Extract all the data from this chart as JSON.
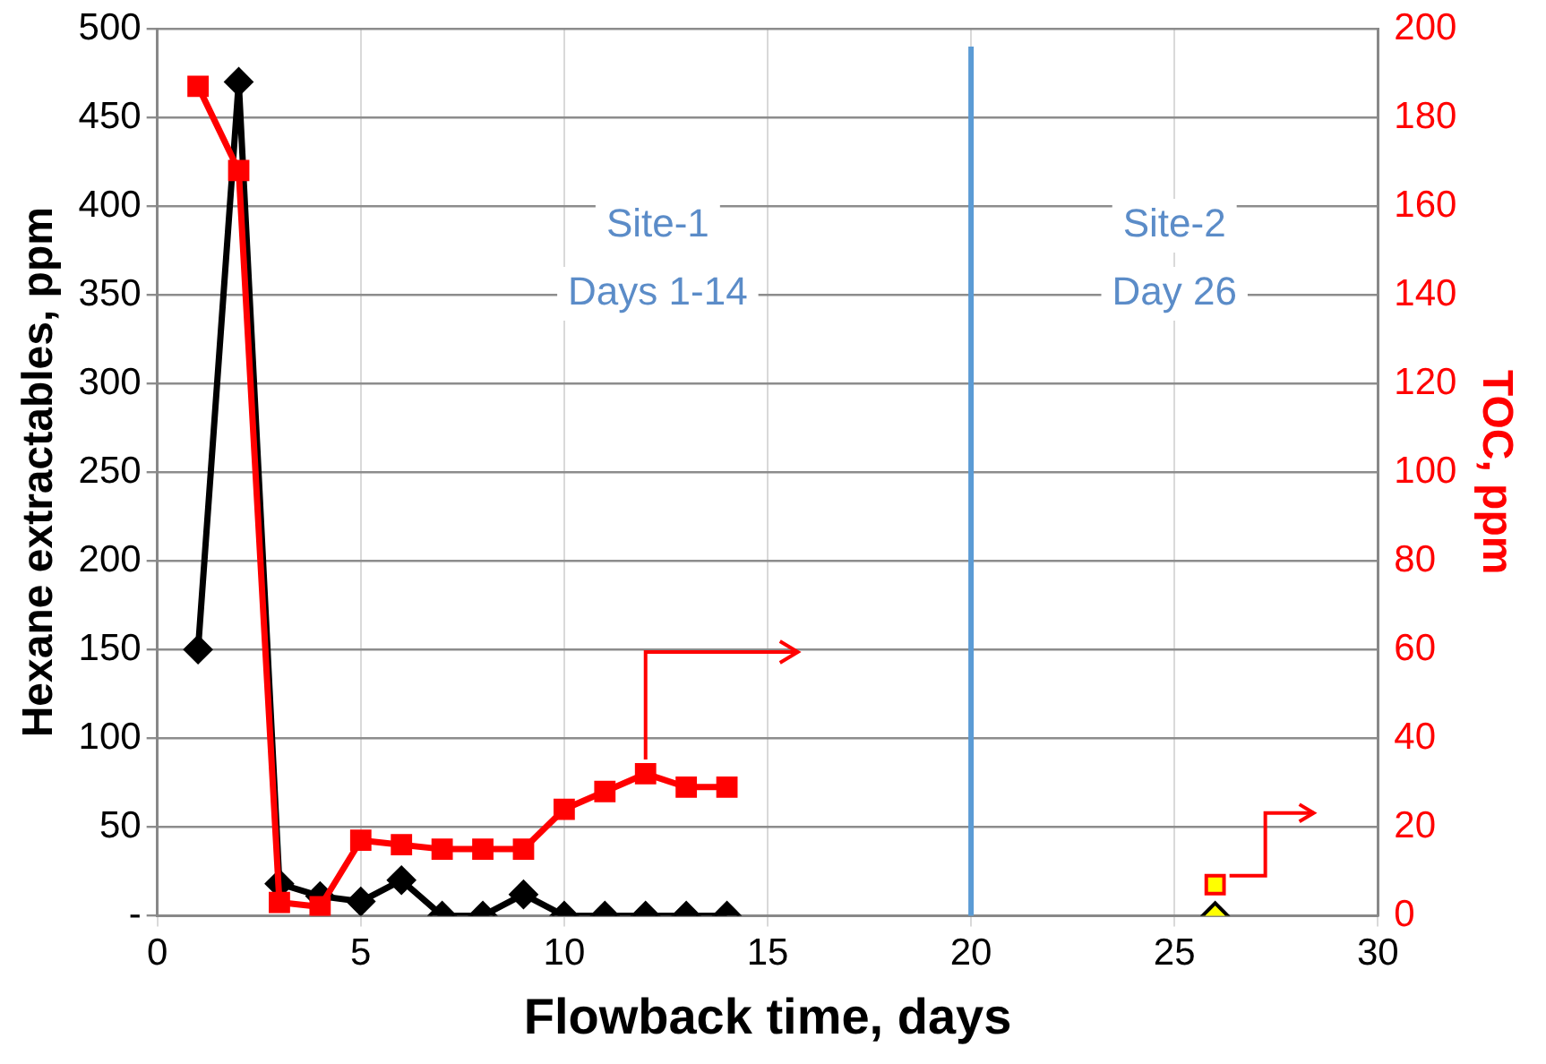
{
  "chart_data": {
    "type": "line",
    "xlabel": "Flowback time, days",
    "ylabel": "Hexane extractables, ppm",
    "y2label": "TOC, ppm",
    "xlim": [
      0,
      30
    ],
    "xticks": [
      0,
      5,
      10,
      15,
      20,
      25,
      30
    ],
    "ylim": [
      0,
      500
    ],
    "yticks": [
      {
        "value": 0,
        "label": "-"
      },
      50,
      100,
      150,
      200,
      250,
      300,
      350,
      400,
      450,
      500
    ],
    "y2lim": [
      0,
      200
    ],
    "y2ticks": [
      0,
      20,
      40,
      60,
      80,
      100,
      120,
      140,
      160,
      180,
      200
    ],
    "grid": true,
    "legend": false,
    "marker": "diamond",
    "line_style": "solid",
    "ref_lines": [
      {
        "axis": "x",
        "value": 20,
        "color": "#5b9bd5"
      }
    ],
    "annotations": [
      "Site-1\nDays 1-14",
      "Site-2\nDay 26"
    ],
    "series": [
      {
        "color": "#000000",
        "x": [
          1,
          2,
          3,
          4,
          5,
          6,
          7,
          8,
          9,
          10,
          11,
          12,
          13,
          14
        ],
        "values": [
          150,
          470,
          18,
          11,
          8,
          20,
          0,
          0,
          12,
          0,
          0,
          0,
          0,
          0
        ]
      },
      {
        "color": "#ff0000",
        "axis": "y2",
        "marker": "square",
        "x": [
          1,
          2,
          3,
          4,
          5,
          6,
          7,
          8,
          9,
          10,
          11,
          12,
          13,
          14
        ],
        "values": [
          187,
          168,
          3,
          2,
          17,
          16,
          15,
          15,
          15,
          24,
          28,
          32,
          29,
          29
        ]
      },
      {
        "type": "scatter",
        "color": "#ffff00",
        "x": [
          26
        ],
        "values": [
          0
        ]
      },
      {
        "type": "scatter",
        "color": "#ffff00",
        "axis": "y2",
        "marker": "square",
        "x": [
          26
        ],
        "values": [
          7
        ]
      }
    ]
  }
}
